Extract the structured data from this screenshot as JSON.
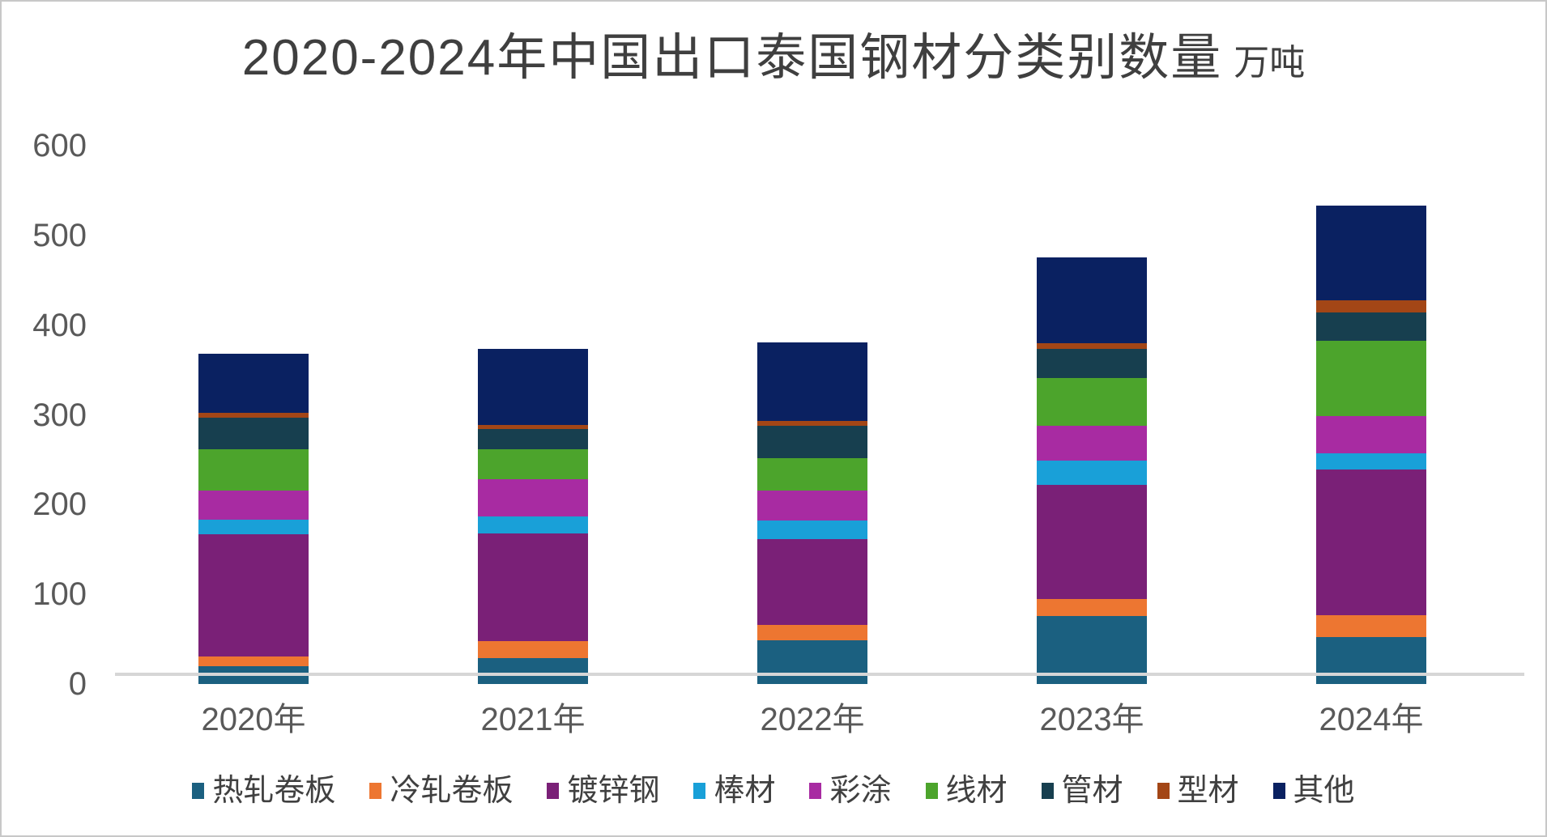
{
  "chart_data": {
    "type": "bar",
    "stacked": true,
    "title": "2020-2024年中国出口泰国钢材分类别数量",
    "unit": "万吨",
    "categories": [
      "2020年",
      "2021年",
      "2022年",
      "2023年",
      "2024年"
    ],
    "series": [
      {
        "name": "热轧卷板",
        "color": "#1B6080",
        "values": [
          20,
          29,
          49,
          76,
          52
        ]
      },
      {
        "name": "冷轧卷板",
        "color": "#ED7631",
        "values": [
          11,
          19,
          17,
          19,
          25
        ]
      },
      {
        "name": "镀锌钢",
        "color": "#7A2077",
        "values": [
          136,
          120,
          96,
          127,
          162
        ]
      },
      {
        "name": "棒材",
        "color": "#19A0D8",
        "values": [
          16,
          19,
          20,
          27,
          18
        ]
      },
      {
        "name": "彩涂",
        "color": "#A82BA2",
        "values": [
          33,
          41,
          34,
          39,
          42
        ]
      },
      {
        "name": "线材",
        "color": "#4CA42C",
        "values": [
          46,
          34,
          36,
          53,
          84
        ]
      },
      {
        "name": "管材",
        "color": "#173F4F",
        "values": [
          35,
          22,
          36,
          33,
          31
        ]
      },
      {
        "name": "型材",
        "color": "#A34616",
        "values": [
          5,
          5,
          5,
          6,
          14
        ]
      },
      {
        "name": "其他",
        "color": "#0A2161",
        "values": [
          66,
          85,
          88,
          96,
          105
        ]
      }
    ],
    "ylim": [
      0,
      600
    ],
    "yticks": [
      0,
      100,
      200,
      300,
      400,
      500,
      600
    ],
    "ylabel": "",
    "xlabel": "",
    "grid": false,
    "legend_position": "bottom",
    "axis_text_color": "#595959",
    "title_color": "#3f3f3f",
    "axis_line_color": "#d6d6d6"
  }
}
